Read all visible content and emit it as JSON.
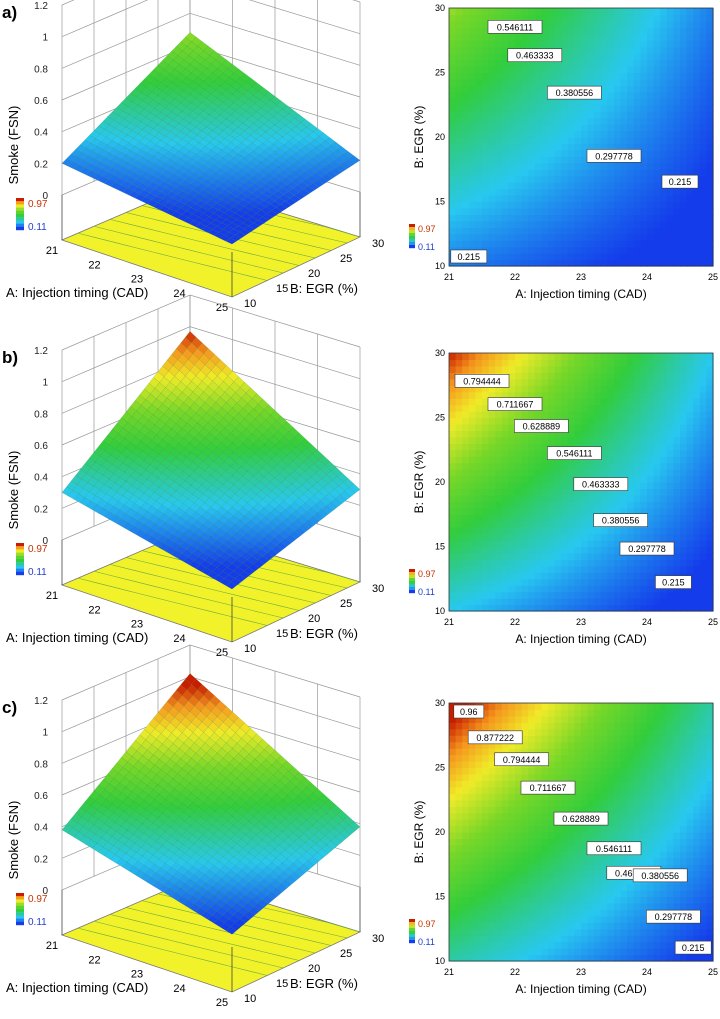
{
  "panels": [
    {
      "label": "a)",
      "peak": 0.68,
      "base_low": 0.2
    },
    {
      "label": "b)",
      "peak": 0.97,
      "base_low": 0.3
    },
    {
      "label": "c)",
      "peak": 1.02,
      "base_low": 0.38
    }
  ],
  "surface": {
    "zlabel": "Smoke  (FSN)",
    "zticks": [
      "0",
      "0.2",
      "0.4",
      "0.6",
      "0.8",
      "1",
      "1.2"
    ],
    "xlabel": "A: Injection timing (CAD)",
    "ylabel": "B: EGR (%)",
    "xticks": [
      "21",
      "22",
      "23",
      "24",
      "25"
    ],
    "yticks": [
      "10",
      "15",
      "20",
      "25",
      "30"
    ]
  },
  "contour": {
    "xlabel": "A: Injection timing (CAD)",
    "ylabel": "B: EGR (%)",
    "xticks": [
      "21",
      "22",
      "23",
      "24",
      "25"
    ],
    "yticks": [
      "10",
      "15",
      "20",
      "25",
      "30"
    ]
  },
  "colorbar": {
    "max": "0.97",
    "min": "0.11"
  },
  "chart_data": [
    {
      "type": "surface",
      "panel": "a",
      "x": [
        21,
        25
      ],
      "y": [
        10,
        30
      ],
      "zlim": [
        0,
        1.2
      ],
      "corners": {
        "x21_y10": 0.2,
        "x21_y30": 0.68,
        "x25_y10": 0.05,
        "x25_y30": 0.2
      }
    },
    {
      "type": "contour",
      "panel": "a",
      "xlim": [
        21,
        25
      ],
      "ylim": [
        10,
        30
      ],
      "levels": [
        {
          "value": "0.546111",
          "x": 22.0,
          "y": 28.5
        },
        {
          "value": "0.463333",
          "x": 22.3,
          "y": 26.3
        },
        {
          "value": "0.380556",
          "x": 22.9,
          "y": 23.4
        },
        {
          "value": "0.297778",
          "x": 23.5,
          "y": 18.5
        },
        {
          "value": "0.215",
          "x": 24.5,
          "y": 16.5
        },
        {
          "value": "0.215",
          "x": 21.3,
          "y": 10.7
        }
      ]
    },
    {
      "type": "surface",
      "panel": "b",
      "x": [
        21,
        25
      ],
      "y": [
        10,
        30
      ],
      "zlim": [
        0,
        1.2
      ],
      "corners": {
        "x21_y10": 0.3,
        "x21_y30": 0.97,
        "x25_y10": 0.05,
        "x25_y30": 0.3
      }
    },
    {
      "type": "contour",
      "panel": "b",
      "xlim": [
        21,
        25
      ],
      "ylim": [
        10,
        30
      ],
      "levels": [
        {
          "value": "0.794444",
          "x": 21.5,
          "y": 27.8
        },
        {
          "value": "0.711667",
          "x": 22.0,
          "y": 26.0
        },
        {
          "value": "0.628889",
          "x": 22.4,
          "y": 24.3
        },
        {
          "value": "0.546111",
          "x": 22.9,
          "y": 22.2
        },
        {
          "value": "0.463333",
          "x": 23.3,
          "y": 19.8
        },
        {
          "value": "0.380556",
          "x": 23.6,
          "y": 17.0
        },
        {
          "value": "0.297778",
          "x": 24.0,
          "y": 14.8
        },
        {
          "value": "0.215",
          "x": 24.4,
          "y": 12.2
        }
      ]
    },
    {
      "type": "surface",
      "panel": "c",
      "x": [
        21,
        25
      ],
      "y": [
        10,
        30
      ],
      "zlim": [
        0,
        1.2
      ],
      "corners": {
        "x21_y10": 0.38,
        "x21_y30": 1.02,
        "x25_y10": 0.08,
        "x25_y30": 0.38
      }
    },
    {
      "type": "contour",
      "panel": "c",
      "xlim": [
        21,
        25
      ],
      "ylim": [
        10,
        30
      ],
      "levels": [
        {
          "value": "0.96",
          "x": 21.3,
          "y": 29.3
        },
        {
          "value": "0.877222",
          "x": 21.7,
          "y": 27.3
        },
        {
          "value": "0.794444",
          "x": 22.1,
          "y": 25.6
        },
        {
          "value": "0.711667",
          "x": 22.5,
          "y": 23.4
        },
        {
          "value": "0.628889",
          "x": 23.0,
          "y": 21.0
        },
        {
          "value": "0.546111",
          "x": 23.5,
          "y": 18.7
        },
        {
          "value": "0.463333",
          "x": 23.8,
          "y": 16.8
        },
        {
          "value": "0.380556",
          "x": 24.2,
          "y": 16.6
        },
        {
          "value": "0.297778",
          "x": 24.4,
          "y": 13.4
        },
        {
          "value": "0.215",
          "x": 24.7,
          "y": 11.0
        }
      ]
    }
  ],
  "colors": {
    "low": "#1a3cf0",
    "mid": "#33cc33",
    "high": "#cc2200",
    "floor": "#f2f22a",
    "grid": "#888888"
  }
}
